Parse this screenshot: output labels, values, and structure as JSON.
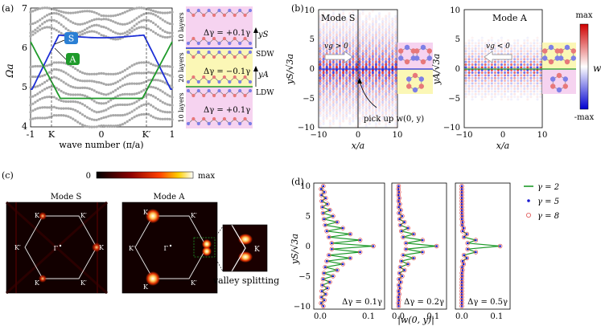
{
  "panel_labels": {
    "a": "(a)",
    "b": "(b)",
    "c": "(c)",
    "d": "(d)"
  },
  "panel_a": {
    "ylabel": "Ωa",
    "xlabel": "wave number (π/a)",
    "yticks": [
      "4",
      "5",
      "6",
      "7"
    ],
    "xticks": [
      "-1",
      "K",
      "0",
      "K′",
      "1"
    ],
    "badge_S": "S",
    "badge_A": "A",
    "colors": {
      "bulk": "#a8a8a8",
      "S": "#1d2fd6",
      "A": "#1e9a2a",
      "badge_S": "#2a7fd4",
      "badge_A": "#1e9a2a"
    }
  },
  "stack": {
    "layers_top": "10 layers",
    "layers_mid": "20 layers",
    "layers_bot": "10 layers",
    "dg_top": "Δγ = +0.1γ",
    "dg_mid": "Δγ = −0.1γ",
    "dg_bot": "Δγ = +0.1γ",
    "yS": "yS",
    "yA": "yA",
    "SDW": "SDW",
    "LDW": "LDW",
    "colors": {
      "pink": "#f6d3f0",
      "yellow": "#fbf7b6",
      "blue_atom": "#7d7fe6",
      "red_atom": "#e8787a"
    }
  },
  "panel_b": {
    "modeS": "Mode S",
    "modeA": "Mode A",
    "vg_pos": "vg > 0",
    "vg_neg": "vg < 0",
    "pickup": "pick up  w(0, y)",
    "ylabel_S": "yS/√3a",
    "ylabel_A": "yA/√3a",
    "xlabel": "x/a",
    "xticks": [
      "−10",
      "0",
      "10"
    ],
    "yticks": [
      "10",
      "5",
      "0",
      "−5",
      "−10"
    ],
    "colorbar": {
      "max": "max",
      "min": "-max",
      "label": "w"
    }
  },
  "panel_c": {
    "cb_min": "0",
    "cb_max": "max",
    "modeS": "Mode S",
    "modeA": "Mode A",
    "K": "K",
    "Kp": "K′",
    "Gamma": "Γ",
    "valley": "valley splitting"
  },
  "panel_d": {
    "ylabel": "yS/√3a",
    "xlabel": "|w(0, y)|",
    "yticks": [
      "10",
      "5",
      "0",
      "−5",
      "−10"
    ],
    "xticks": [
      "0.0",
      "0.1"
    ],
    "subplots": [
      "Δγ = 0.1γ",
      "Δγ = 0.2γ",
      "Δγ = 0.5γ"
    ],
    "legend": [
      "γ = 2",
      "γ = 5",
      "γ = 8"
    ],
    "colors": {
      "line": "#1e9a2a",
      "dots": "#1a1ad0",
      "circles": "#e05050"
    }
  }
}
